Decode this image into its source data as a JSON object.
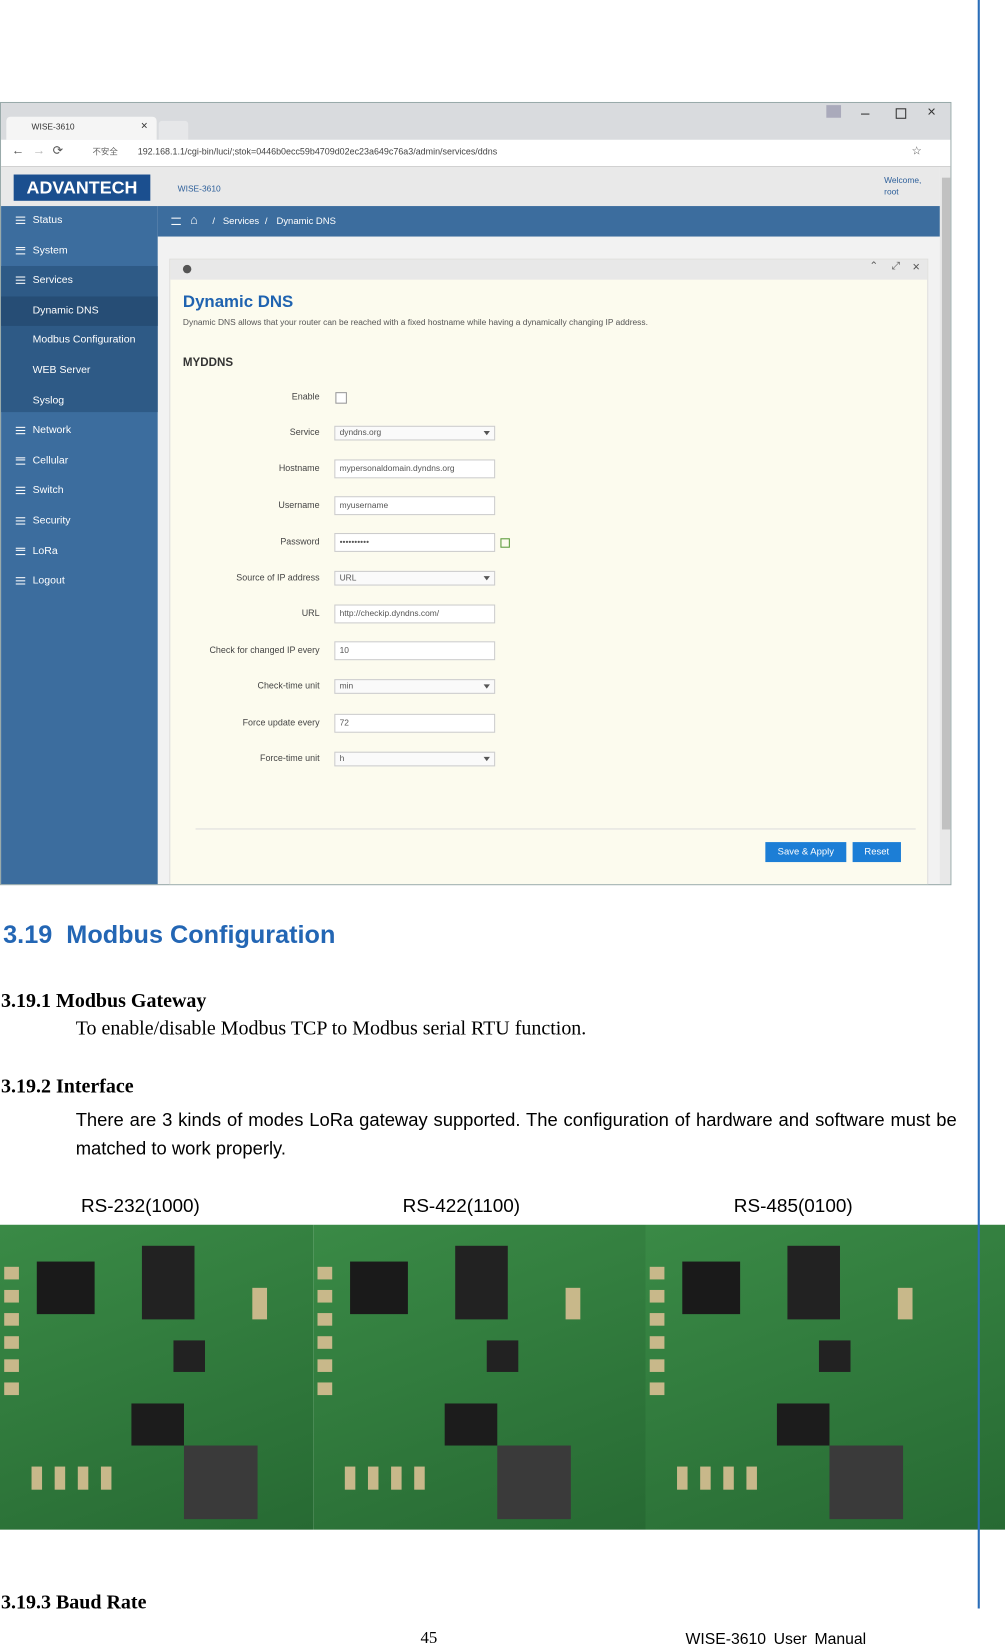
{
  "browser": {
    "tab_title": "WISE-3610",
    "security": "不安全",
    "url": "192.168.1.1/cgi-bin/luci/;stok=0446b0ecc59b4709d02ec23a649c76a3/admin/services/ddns"
  },
  "app": {
    "logo": "ADVANTECH",
    "product": "WISE-3610",
    "welcome": "Welcome,",
    "user": "root",
    "menu": [
      {
        "label": "Status",
        "sub": false
      },
      {
        "label": "System",
        "sub": false
      },
      {
        "label": "Services",
        "sub": false
      },
      {
        "label": "Dynamic DNS",
        "sub": true
      },
      {
        "label": "Modbus Configuration",
        "sub": true
      },
      {
        "label": "WEB Server",
        "sub": true
      },
      {
        "label": "Syslog",
        "sub": true
      },
      {
        "label": "Network",
        "sub": false
      },
      {
        "label": "Cellular",
        "sub": false
      },
      {
        "label": "Switch",
        "sub": false
      },
      {
        "label": "Security",
        "sub": false
      },
      {
        "label": "LoRa",
        "sub": false
      },
      {
        "label": "Logout",
        "sub": false
      }
    ],
    "breadcrumb": [
      "Services",
      "Dynamic DNS"
    ],
    "panel": {
      "title": "Dynamic DNS",
      "description": "Dynamic DNS allows that your router can be reached with a fixed hostname while having a dynamically changing IP address.",
      "section": "MYDDNS",
      "fields": [
        {
          "label": "Enable",
          "kind": "checkbox"
        },
        {
          "label": "Service",
          "kind": "select",
          "value": "dyndns.org"
        },
        {
          "label": "Hostname",
          "kind": "text",
          "value": "mypersonaldomain.dyndns.org"
        },
        {
          "label": "Username",
          "kind": "text",
          "value": "myusername"
        },
        {
          "label": "Password",
          "kind": "password",
          "value": "••••••••••"
        },
        {
          "label": "Source of IP address",
          "kind": "select",
          "value": "URL"
        },
        {
          "label": "URL",
          "kind": "text",
          "value": "http://checkip.dyndns.com/"
        },
        {
          "label": "Check for changed IP every",
          "kind": "text",
          "value": "10"
        },
        {
          "label": "Check-time unit",
          "kind": "select",
          "value": "min"
        },
        {
          "label": "Force update every",
          "kind": "text",
          "value": "72"
        },
        {
          "label": "Force-time unit",
          "kind": "select",
          "value": "h"
        }
      ],
      "buttons": [
        "Save & Apply",
        "Reset"
      ]
    }
  },
  "document": {
    "heading": {
      "number": "3.19",
      "title": "Modbus Configuration"
    },
    "sections": [
      {
        "heading": "3.19.1 Modbus Gateway",
        "text": "To enable/disable Modbus TCP to Modbus serial RTU function."
      },
      {
        "heading": "3.19.2 Interface",
        "text": "There are 3 kinds of modes LoRa gateway supported. The configuration of hardware and software must be matched to work properly."
      },
      {
        "heading": "3.19.3 Baud Rate"
      }
    ],
    "photos": [
      "RS-232(1000)",
      "RS-422(1100)",
      "RS-485(0100)"
    ],
    "footer": {
      "page": "45",
      "title": "WISE-3610 User Manual"
    }
  }
}
